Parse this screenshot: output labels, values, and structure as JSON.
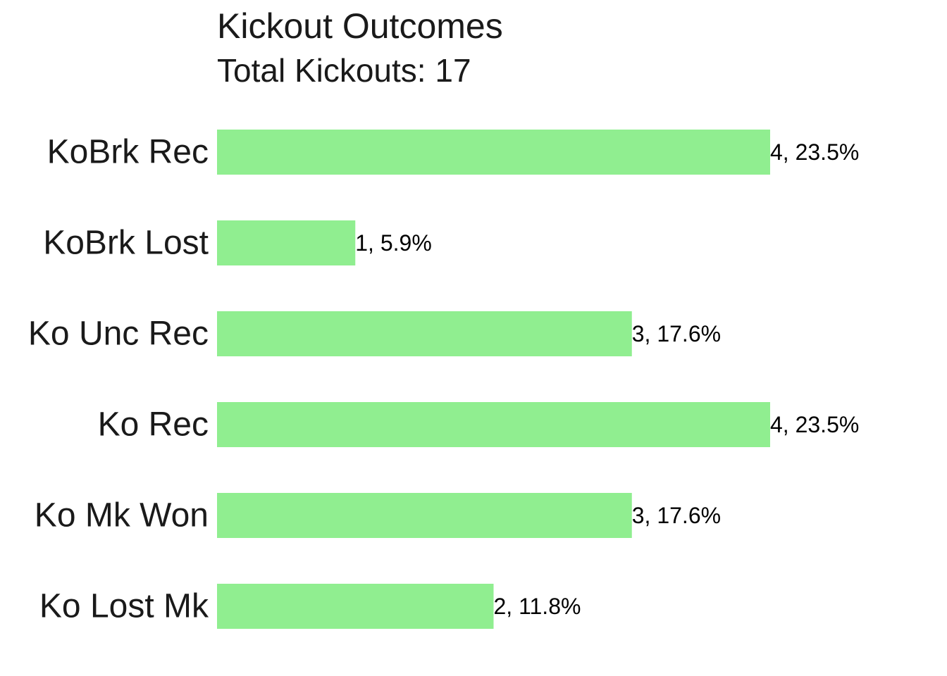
{
  "chart_data": {
    "type": "bar",
    "orientation": "horizontal",
    "title": "Kickout Outcomes",
    "subtitle": "Total Kickouts: 17",
    "categories": [
      "KoBrk Rec",
      "KoBrk Lost",
      "Ko Unc Rec",
      "Ko Rec",
      "Ko Mk Won",
      "Ko Lost Mk"
    ],
    "values": [
      4,
      1,
      3,
      4,
      3,
      2
    ],
    "data_labels": [
      "4, 23.5%",
      "1, 5.9%",
      "3, 17.6%",
      "4, 23.5%",
      "3, 17.6%",
      "2, 11.8%"
    ],
    "xlim": [
      0,
      4
    ],
    "xlabel": "",
    "ylabel": "",
    "grid": false,
    "legend": "none",
    "colors": {
      "bar": "#90ee90",
      "text": "#1a1a1a",
      "label": "#000000",
      "background": "#ffffff"
    }
  }
}
